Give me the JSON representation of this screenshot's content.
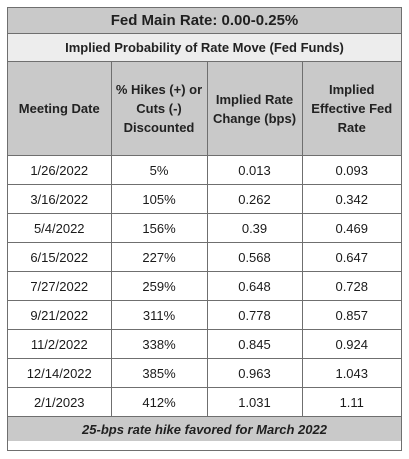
{
  "title": "Fed Main Rate: 0.00-0.25%",
  "subtitle": "Implied Probability of Rate Move (Fed Funds)",
  "headers": [
    "Meeting Date",
    "% Hikes (+) or Cuts (-) Discounted",
    "Implied Rate Change (bps)",
    "Implied Effective Fed Rate"
  ],
  "rows": [
    [
      "1/26/2022",
      "5%",
      "0.013",
      "0.093"
    ],
    [
      "3/16/2022",
      "105%",
      "0.262",
      "0.342"
    ],
    [
      "5/4/2022",
      "156%",
      "0.39",
      "0.469"
    ],
    [
      "6/15/2022",
      "227%",
      "0.568",
      "0.647"
    ],
    [
      "7/27/2022",
      "259%",
      "0.648",
      "0.728"
    ],
    [
      "9/21/2022",
      "311%",
      "0.778",
      "0.857"
    ],
    [
      "11/2/2022",
      "338%",
      "0.845",
      "0.924"
    ],
    [
      "12/14/2022",
      "385%",
      "0.963",
      "1.043"
    ],
    [
      "2/1/2023",
      "412%",
      "1.031",
      "1.11"
    ]
  ],
  "footer": "25-bps rate hike favored for March 2022",
  "colors": {
    "header_bg": "#c9c9c9",
    "subtitle_bg": "#ededed",
    "border": "#6f6f6f"
  }
}
